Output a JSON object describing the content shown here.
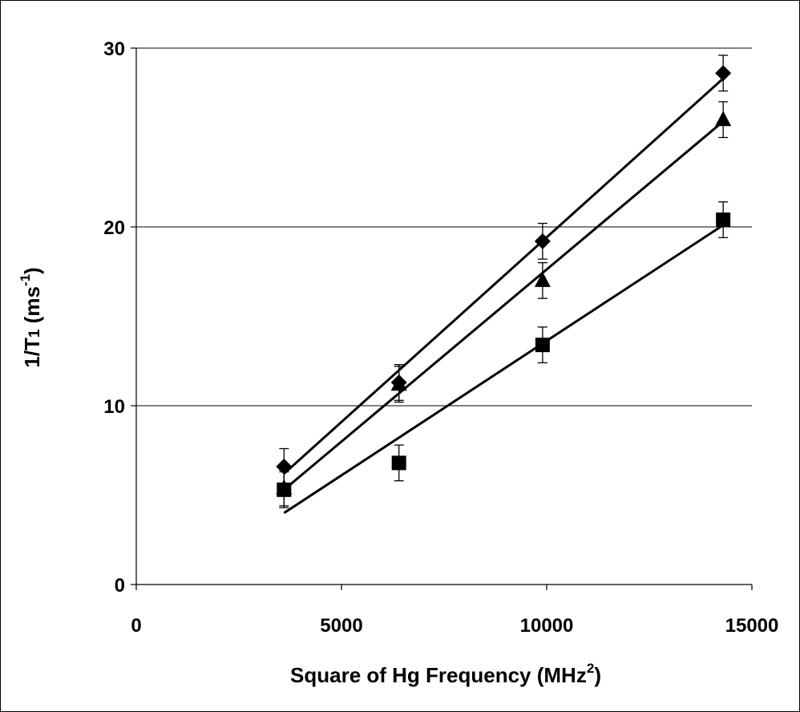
{
  "chart_data": {
    "type": "scatter",
    "title": "",
    "xlabel": {
      "main": "Square of Hg Frequency (MHz",
      "sup": "2",
      "tail": ")"
    },
    "ylabel": {
      "pre": "1/T",
      "sub": "1",
      "mid": " (ms",
      "sup": "-1",
      "tail": ")"
    },
    "xlim": [
      0,
      15000
    ],
    "ylim": [
      0,
      30
    ],
    "xticks": [
      0,
      5000,
      10000,
      15000
    ],
    "yticks": [
      0,
      10,
      20,
      30
    ],
    "horizontal_gridlines": [
      10,
      20,
      30
    ],
    "legend": "none",
    "error_bar": 1,
    "series": [
      {
        "marker": "diamond",
        "x": [
          3600,
          6400,
          9900,
          14300
        ],
        "y": [
          6.6,
          11.3,
          19.2,
          28.6
        ],
        "trend": {
          "x": [
            3600,
            14300
          ],
          "y": [
            6.2,
            28.3
          ]
        }
      },
      {
        "marker": "triangle",
        "x": [
          3600,
          6400,
          9900,
          14300
        ],
        "y": [
          5.4,
          11.2,
          17.0,
          26.0
        ],
        "trend": {
          "x": [
            3600,
            14300
          ],
          "y": [
            5.3,
            25.9
          ]
        }
      },
      {
        "marker": "square",
        "x": [
          3600,
          6400,
          9900,
          14300
        ],
        "y": [
          5.3,
          6.8,
          13.4,
          20.4
        ],
        "trend": {
          "x": [
            3600,
            14300
          ],
          "y": [
            4.0,
            20.1
          ]
        }
      }
    ]
  }
}
